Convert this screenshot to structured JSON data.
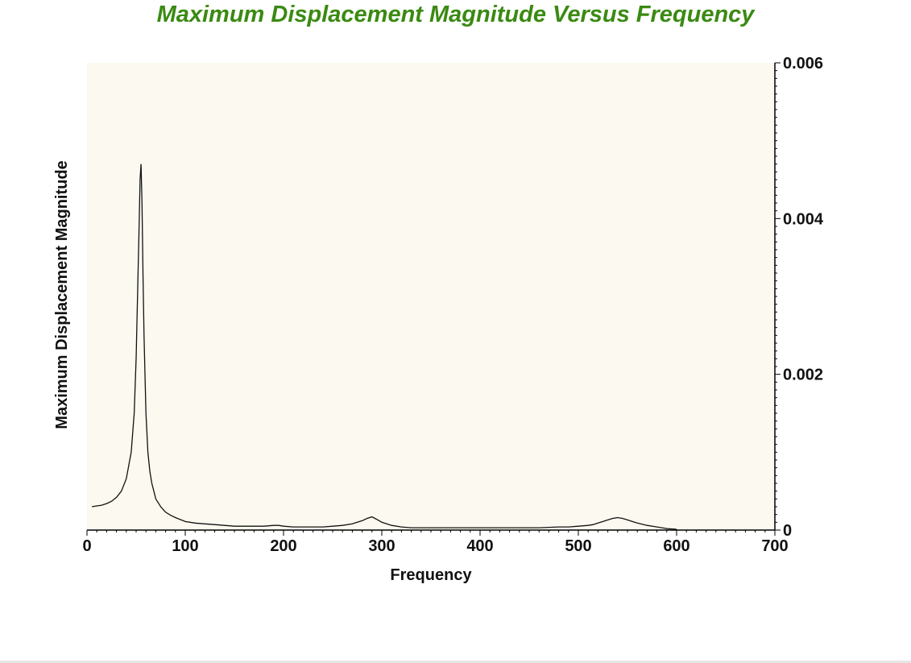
{
  "chart_data": {
    "type": "line",
    "title": "Maximum Displacement Magnitude Versus Frequency",
    "xlabel": "Frequency",
    "ylabel": "Maximum Displacement Magnitude",
    "xlim": [
      0,
      700
    ],
    "ylim": [
      0,
      0.006
    ],
    "x_ticks": [
      "0",
      "100",
      "200",
      "300",
      "400",
      "500",
      "600",
      "700"
    ],
    "y_ticks": [
      "0",
      "0.002",
      "0.004",
      "0.006"
    ],
    "y_axis_side": "right",
    "grid": false,
    "legend": "none",
    "colors": {
      "title": "#3a8a12",
      "plot_bg": "#fcfaf0",
      "line": "#111111"
    },
    "series": [
      {
        "x": [
          5,
          10,
          15,
          20,
          25,
          30,
          35,
          40,
          45,
          48,
          50,
          52,
          53,
          54,
          55,
          56,
          57,
          58,
          60,
          62,
          64,
          66,
          68,
          70,
          75,
          80,
          85,
          90,
          100,
          110,
          120,
          130,
          140,
          150,
          160,
          170,
          180,
          190,
          195,
          200,
          210,
          220,
          230,
          240,
          250,
          260,
          270,
          275,
          280,
          285,
          290,
          293,
          296,
          300,
          305,
          310,
          320,
          330,
          340,
          350,
          370,
          400,
          430,
          460,
          480,
          490,
          500,
          510,
          515,
          520,
          525,
          530,
          535,
          540,
          545,
          550,
          555,
          560,
          570,
          580,
          590,
          600
        ],
        "y": [
          0.0003,
          0.00031,
          0.00032,
          0.00034,
          0.00037,
          0.00042,
          0.0005,
          0.00066,
          0.001,
          0.0015,
          0.0022,
          0.0033,
          0.0039,
          0.0045,
          0.0047,
          0.0042,
          0.0033,
          0.0025,
          0.0015,
          0.001,
          0.00075,
          0.0006,
          0.0005,
          0.0004,
          0.0003,
          0.00023,
          0.00019,
          0.00016,
          0.00011,
          9e-05,
          8e-05,
          7e-05,
          6e-05,
          5e-05,
          5e-05,
          5e-05,
          5e-05,
          6e-05,
          6e-05,
          5e-05,
          4e-05,
          4e-05,
          4e-05,
          4e-05,
          5e-05,
          6e-05,
          8e-05,
          0.0001,
          0.00012,
          0.00015,
          0.00017,
          0.00015,
          0.00013,
          0.0001,
          8e-05,
          6e-05,
          4e-05,
          3e-05,
          3e-05,
          3e-05,
          3e-05,
          3e-05,
          3e-05,
          3e-05,
          4e-05,
          4e-05,
          5e-05,
          6e-05,
          7e-05,
          9e-05,
          0.00011,
          0.00013,
          0.00015,
          0.00016,
          0.00015,
          0.00013,
          0.00011,
          9e-05,
          6e-05,
          4e-05,
          2e-05,
          1e-05
        ]
      }
    ]
  }
}
